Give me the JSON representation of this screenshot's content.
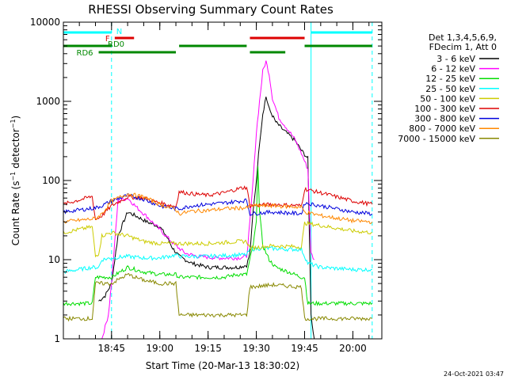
{
  "chart_data": {
    "type": "line",
    "title": "RHESSI Observing Summary Count Rates",
    "xlabel": "Start Time (20-Mar-13 18:30:02)",
    "ylabel": "Count Rate (s⁻¹ detector⁻¹)",
    "y_scale": "log",
    "ylim": [
      1,
      10000
    ],
    "xlim": [
      "18:30:02",
      "20:09:00"
    ],
    "x_ticks": [
      "18:45",
      "19:00",
      "19:15",
      "19:30",
      "19:45",
      "20:00"
    ],
    "y_ticks": [
      "1",
      "10",
      "100",
      "1000",
      "10000"
    ],
    "grid": false,
    "legend_position": "right",
    "legend_header": [
      "Det 1,3,4,5,6,9,",
      "FDecim 1, Att 0"
    ],
    "series": [
      {
        "name": "3 - 6 keV",
        "color": "#000000",
        "points": [
          [
            "18:41",
            3
          ],
          [
            "18:43",
            3.5
          ],
          [
            "18:45",
            5
          ],
          [
            "18:47",
            20
          ],
          [
            "18:50",
            40
          ],
          [
            "18:53",
            35
          ],
          [
            "18:56",
            30
          ],
          [
            "19:00",
            26
          ],
          [
            "19:02",
            20
          ],
          [
            "19:04",
            14
          ],
          [
            "19:06",
            11
          ],
          [
            "19:10",
            9
          ],
          [
            "19:15",
            8
          ],
          [
            "19:20",
            8
          ],
          [
            "19:24",
            8
          ],
          [
            "19:27",
            8.5
          ],
          [
            "19:28",
            12
          ],
          [
            "19:29",
            40
          ],
          [
            "19:30",
            100
          ],
          [
            "19:31",
            300
          ],
          [
            "19:32",
            700
          ],
          [
            "19:33",
            1150
          ],
          [
            "19:34",
            800
          ],
          [
            "19:36",
            550
          ],
          [
            "19:38",
            450
          ],
          [
            "19:40",
            380
          ],
          [
            "19:42",
            320
          ],
          [
            "19:44",
            240
          ],
          [
            "19:46",
            190
          ],
          [
            "19:47",
            2
          ],
          [
            "19:48",
            1
          ]
        ]
      },
      {
        "name": "6 - 12 keV",
        "color": "#ff00ff",
        "points": [
          [
            "18:42",
            1
          ],
          [
            "18:44",
            2
          ],
          [
            "18:45",
            5
          ],
          [
            "18:47",
            55
          ],
          [
            "18:50",
            60
          ],
          [
            "18:53",
            45
          ],
          [
            "18:56",
            35
          ],
          [
            "19:00",
            24
          ],
          [
            "19:03",
            18
          ],
          [
            "19:05",
            15
          ],
          [
            "19:08",
            12
          ],
          [
            "19:12",
            11
          ],
          [
            "19:18",
            10.5
          ],
          [
            "19:24",
            10.5
          ],
          [
            "19:27",
            11
          ],
          [
            "19:28",
            30
          ],
          [
            "19:29",
            100
          ],
          [
            "19:30",
            400
          ],
          [
            "19:31",
            1000
          ],
          [
            "19:32",
            2400
          ],
          [
            "19:33",
            3200
          ],
          [
            "19:34",
            2200
          ],
          [
            "19:35",
            1100
          ],
          [
            "19:37",
            620
          ],
          [
            "19:40",
            430
          ],
          [
            "19:42",
            330
          ],
          [
            "19:44",
            220
          ],
          [
            "19:46",
            140
          ],
          [
            "19:47",
            12
          ],
          [
            "19:48",
            10
          ]
        ]
      },
      {
        "name": "12 - 25 keV",
        "color": "#00dd00",
        "points": [
          [
            "18:30",
            2.8
          ],
          [
            "18:39",
            2.8
          ],
          [
            "18:40",
            6
          ],
          [
            "18:45",
            6
          ],
          [
            "18:50",
            8
          ],
          [
            "18:55",
            7
          ],
          [
            "19:00",
            6.5
          ],
          [
            "19:05",
            6.5
          ],
          [
            "19:06",
            6
          ],
          [
            "19:15",
            6
          ],
          [
            "19:20",
            6
          ],
          [
            "19:24",
            6.5
          ],
          [
            "19:27",
            6.5
          ],
          [
            "19:28",
            10
          ],
          [
            "19:29",
            15
          ],
          [
            "19:30",
            30
          ],
          [
            "19:30:30",
            160
          ],
          [
            "19:31",
            40
          ],
          [
            "19:32",
            15
          ],
          [
            "19:34",
            10
          ],
          [
            "19:36",
            8
          ],
          [
            "19:40",
            7
          ],
          [
            "19:44",
            6
          ],
          [
            "19:45",
            6
          ],
          [
            "19:46",
            2.8
          ],
          [
            "20:06",
            2.8
          ]
        ]
      },
      {
        "name": "25 - 50 keV",
        "color": "#00ffff",
        "points": [
          [
            "18:30",
            7
          ],
          [
            "18:39",
            8
          ],
          [
            "18:41",
            8
          ],
          [
            "18:42",
            10
          ],
          [
            "18:45",
            10.5
          ],
          [
            "18:50",
            11
          ],
          [
            "18:55",
            10.5
          ],
          [
            "19:00",
            10.5
          ],
          [
            "19:05",
            11.5
          ],
          [
            "19:06",
            11
          ],
          [
            "19:15",
            11
          ],
          [
            "19:25",
            11.5
          ],
          [
            "19:27",
            11.5
          ],
          [
            "19:28",
            13.5
          ],
          [
            "19:32",
            14
          ],
          [
            "19:40",
            13.5
          ],
          [
            "19:44",
            13.5
          ],
          [
            "19:46",
            9
          ],
          [
            "19:50",
            8
          ],
          [
            "20:00",
            7.5
          ],
          [
            "20:06",
            7.5
          ]
        ]
      },
      {
        "name": "50 - 100 keV",
        "color": "#cccc00",
        "points": [
          [
            "18:30",
            22
          ],
          [
            "18:39",
            26
          ],
          [
            "18:40",
            11
          ],
          [
            "18:41",
            12
          ],
          [
            "18:42",
            20
          ],
          [
            "18:45",
            22
          ],
          [
            "18:50",
            20
          ],
          [
            "18:55",
            17
          ],
          [
            "19:00",
            16
          ],
          [
            "19:05",
            16
          ],
          [
            "19:06",
            16
          ],
          [
            "19:15",
            16
          ],
          [
            "19:25",
            17
          ],
          [
            "19:27",
            17
          ],
          [
            "19:28",
            14
          ],
          [
            "19:35",
            15
          ],
          [
            "19:44",
            14.5
          ],
          [
            "19:45",
            29
          ],
          [
            "19:50",
            27
          ],
          [
            "20:00",
            23
          ],
          [
            "20:06",
            22
          ]
        ]
      },
      {
        "name": "100 - 300 keV",
        "color": "#dd0000",
        "points": [
          [
            "18:30",
            50
          ],
          [
            "18:39",
            63
          ],
          [
            "18:40",
            32
          ],
          [
            "18:42",
            36
          ],
          [
            "18:45",
            48
          ],
          [
            "18:50",
            62
          ],
          [
            "18:55",
            60
          ],
          [
            "19:00",
            52
          ],
          [
            "19:05",
            47
          ],
          [
            "19:06",
            72
          ],
          [
            "19:10",
            68
          ],
          [
            "19:15",
            65
          ],
          [
            "19:20",
            70
          ],
          [
            "19:25",
            80
          ],
          [
            "19:27",
            82
          ],
          [
            "19:28",
            48
          ],
          [
            "19:35",
            50
          ],
          [
            "19:44",
            48
          ],
          [
            "19:45",
            78
          ],
          [
            "19:50",
            70
          ],
          [
            "20:00",
            55
          ],
          [
            "20:06",
            50
          ]
        ]
      },
      {
        "name": "300 - 800 keV",
        "color": "#0000dd",
        "points": [
          [
            "18:30",
            40
          ],
          [
            "18:40",
            45
          ],
          [
            "18:42",
            48
          ],
          [
            "18:45",
            55
          ],
          [
            "18:50",
            65
          ],
          [
            "18:55",
            58
          ],
          [
            "19:00",
            48
          ],
          [
            "19:05",
            44
          ],
          [
            "19:06",
            44
          ],
          [
            "19:10",
            48
          ],
          [
            "19:15",
            50
          ],
          [
            "19:20",
            52
          ],
          [
            "19:25",
            55
          ],
          [
            "19:27",
            56
          ],
          [
            "19:28",
            38
          ],
          [
            "19:35",
            40
          ],
          [
            "19:44",
            38
          ],
          [
            "19:45",
            52
          ],
          [
            "19:50",
            48
          ],
          [
            "20:00",
            40
          ],
          [
            "20:06",
            38
          ]
        ]
      },
      {
        "name": "800 - 7000 keV",
        "color": "#ff8800",
        "points": [
          [
            "18:30",
            30
          ],
          [
            "18:40",
            33
          ],
          [
            "18:42",
            38
          ],
          [
            "18:45",
            55
          ],
          [
            "18:50",
            68
          ],
          [
            "18:55",
            62
          ],
          [
            "19:00",
            50
          ],
          [
            "19:05",
            43
          ],
          [
            "19:06",
            38
          ],
          [
            "19:10",
            41
          ],
          [
            "19:15",
            42
          ],
          [
            "19:20",
            44
          ],
          [
            "19:25",
            45
          ],
          [
            "19:27",
            45
          ],
          [
            "19:28",
            48
          ],
          [
            "19:35",
            48
          ],
          [
            "19:44",
            46
          ],
          [
            "19:45",
            40
          ],
          [
            "19:50",
            36
          ],
          [
            "20:00",
            31
          ],
          [
            "20:06",
            30
          ]
        ]
      },
      {
        "name": "7000 - 15000 keV",
        "color": "#888800",
        "points": [
          [
            "18:30",
            1.8
          ],
          [
            "18:39",
            1.8
          ],
          [
            "18:40",
            5
          ],
          [
            "18:45",
            5
          ],
          [
            "18:50",
            6.5
          ],
          [
            "18:55",
            5.5
          ],
          [
            "19:00",
            5
          ],
          [
            "19:05",
            5
          ],
          [
            "19:06",
            2
          ],
          [
            "19:15",
            2
          ],
          [
            "19:25",
            2
          ],
          [
            "19:27",
            2
          ],
          [
            "19:28",
            4.5
          ],
          [
            "19:35",
            4.8
          ],
          [
            "19:44",
            4.5
          ],
          [
            "19:45",
            1.8
          ],
          [
            "20:06",
            1.8
          ]
        ]
      }
    ],
    "state_bars": [
      {
        "label": "N",
        "color": "#00ffff",
        "segments": [
          [
            "18:30",
            "18:45"
          ],
          [
            "19:47",
            "20:06"
          ]
        ]
      },
      {
        "label": "F",
        "color": "#dd0000",
        "segments": [
          [
            "18:46",
            "18:52"
          ],
          [
            "19:28",
            "19:45"
          ]
        ]
      },
      {
        "label": "RD0",
        "color": "#008800",
        "segments": [
          [
            "18:30",
            "18:45"
          ],
          [
            "19:06",
            "19:27"
          ],
          [
            "19:45",
            "20:06"
          ]
        ]
      },
      {
        "label": "RD6",
        "color": "#008800",
        "segments": [
          [
            "18:41",
            "19:05"
          ],
          [
            "19:28",
            "19:39"
          ]
        ]
      }
    ],
    "vertical_markers": [
      {
        "time": "18:30:02",
        "color": "#00ffff",
        "style": "solid"
      },
      {
        "time": "18:45",
        "color": "#00ffff",
        "style": "dashed"
      },
      {
        "time": "19:47",
        "color": "#00ffff",
        "style": "solid"
      },
      {
        "time": "20:06",
        "color": "#00ffff",
        "style": "dashed"
      }
    ]
  },
  "footer_date": "24-Oct-2021 03:47"
}
